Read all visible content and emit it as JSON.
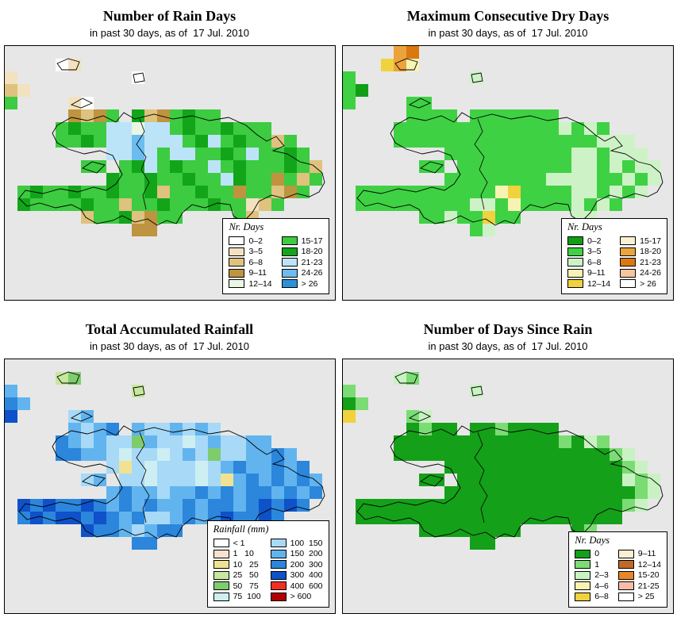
{
  "map": {
    "background": "#E7E7E7",
    "cell_size": 16,
    "cols": 26,
    "rows": 20
  },
  "panels": [
    {
      "id": "rain-days",
      "title": "Number of Rain Days",
      "subtitle": "in past 30 days, as of  17 Jul. 2010",
      "legend": {
        "title": "Nr. Days",
        "columns": [
          [
            {
              "label": "0–2",
              "color": "#FFFFFF"
            },
            {
              "label": "3–5",
              "color": "#F2E2C0"
            },
            {
              "label": "6–8",
              "color": "#DEC27E"
            },
            {
              "label": "9–11",
              "color": "#BE9440"
            },
            {
              "label": "12–14",
              "color": "#EAF6E2"
            }
          ],
          [
            {
              "label": "15-17",
              "color": "#3DCB41"
            },
            {
              "label": "18-20",
              "color": "#12A51A"
            },
            {
              "label": "21-23",
              "color": "#BCE4F9"
            },
            {
              "label": "24-26",
              "color": "#6CBCEF"
            },
            {
              "label": "> 26",
              "color": "#2E8FD8"
            }
          ]
        ]
      },
      "palette": {
        "a": "#FFFFFF",
        "b": "#F2E2C0",
        "c": "#DEC27E",
        "d": "#BE9440",
        "e": "#EAF6E2",
        "f": "#3DCB41",
        "g": "#12A51A",
        "h": "#BCE4F9",
        "i": "#6CBCEF",
        "j": "#2E8FD8"
      },
      "grid": [
        "..........................",
        "....ab....................",
        "b.........a...............",
        "cb........................",
        "f....ba...................",
        ".....dcdf.gcdfgff.........",
        "....fgffhhehhfgffgfff.....",
        "....ffgfhhihhhfghfgffcf...",
        "........hhihfhhffgfhffgf..",
        "......ff.fghfgffhfgfffgfc.",
        "........gffgffgffhgffdfcf.",
        ".fgffgffgffgcffgffdffcdf..",
        ".gffffgffcffgfffgffbcf....",
        "......cffgcdff....fc......",
        "..........dd..............",
        "..........................",
        "..........................",
        "..........................",
        "..........................",
        ".........................."
      ]
    },
    {
      "id": "dry-days",
      "title": "Maximum Consecutive Dry Days",
      "subtitle": "in past 30 days, as of  17 Jul. 2010",
      "legend": {
        "title": "Nr. Days",
        "columns": [
          [
            {
              "label": "0–2",
              "color": "#119E16"
            },
            {
              "label": "3–5",
              "color": "#3FD144"
            },
            {
              "label": "6–8",
              "color": "#CDF2C6"
            },
            {
              "label": "9–11",
              "color": "#F7F3B2"
            },
            {
              "label": "12–14",
              "color": "#F0D23E"
            }
          ],
          [
            {
              "label": "15-17",
              "color": "#FBF0D2"
            },
            {
              "label": "18-20",
              "color": "#EDA33C"
            },
            {
              "label": "21-23",
              "color": "#D9790F"
            },
            {
              "label": "24-26",
              "color": "#F6C79E"
            },
            {
              "label": "> 26",
              "color": "#FFFFFF"
            }
          ]
        ]
      },
      "palette": {
        "a": "#119E16",
        "b": "#3FD144",
        "c": "#CDF2C6",
        "d": "#F7F3B2",
        "e": "#F0D23E",
        "f": "#FBF0D2",
        "g": "#EDA33C",
        "h": "#D9790F",
        "i": "#F6C79E",
        "j": "#FFFFFF"
      },
      "grid": [
        "....gh....................",
        "...egd....................",
        "b.........c...............",
        "ba........................",
        "b....bb...................",
        ".....bbbb.bbbbbbb.........",
        "....bbbbbbbbbbbbbcbcb.....",
        "....bbbbbbbbbbbbbbbbccc...",
        "........bbbbbbbbbbccbccc..",
        "......bb.bbbbbbbbbccbcbcc.",
        "........bbbbbbbbccccbbcbc.",
        ".bbbbbbbbbbbdebbbbccbcbc..",
        ".bbbbbbbbbccbdbbbbcbcb....",
        "......bbcbbebb....cc......",
        "..........bc..............",
        "..........................",
        "..........................",
        "..........................",
        "..........................",
        ".........................."
      ]
    },
    {
      "id": "total-rainfall",
      "title": "Total Accumulated Rainfall",
      "subtitle": "in past 30 days, as of  17 Jul. 2010",
      "legend": {
        "title": "Rainfall (mm)",
        "columns": [
          [
            {
              "label": "< 1",
              "color": "#FFFFFF"
            },
            {
              "label": "1   10",
              "color": "#F7E2D0"
            },
            {
              "label": "10   25",
              "color": "#F0E292"
            },
            {
              "label": "25   50",
              "color": "#C6E89E"
            },
            {
              "label": "50   75",
              "color": "#7ECC6E"
            },
            {
              "label": "75  100",
              "color": "#CDEFF2"
            }
          ],
          [
            {
              "label": "100  150",
              "color": "#A8D9F7"
            },
            {
              "label": "150  200",
              "color": "#62B4EE"
            },
            {
              "label": "200  300",
              "color": "#2B86DC"
            },
            {
              "label": "300  400",
              "color": "#0F51C8"
            },
            {
              "label": "400  600",
              "color": "#EE3023"
            },
            {
              "label": "> 600",
              "color": "#B00000"
            }
          ]
        ]
      },
      "palette": {
        "a": "#FFFFFF",
        "b": "#F7E2D0",
        "c": "#F0E292",
        "d": "#C6E89E",
        "e": "#7ECC6E",
        "f": "#CDEFF2",
        "g": "#A8D9F7",
        "h": "#62B4EE",
        "i": "#2B86DC",
        "j": "#0F51C8",
        "k": "#EE3023",
        "l": "#B00000"
      },
      "grid": [
        "..........................",
        "....de....................",
        "h.........d...............",
        "ih........................",
        "j....gh...................",
        ".....hghi.hgghghg.........",
        "....ihghggehggfghgghh.....",
        "....iihhgfggfghgegghhih...",
        "........gcgfgggfghihhihi..",
        "......gh.ggfgggfgchihihih.",
        "........hihhghhihihiihihi.",
        ".jijiijihihihhihiihijiji..",
        ".ijijjijihigghihijiiji....",
        "......jiihghii....ij......",
        "..........ii..............",
        "..........................",
        "..........................",
        "..........................",
        "..........................",
        ".........................."
      ]
    },
    {
      "id": "days-since-rain",
      "title": "Number of Days Since Rain",
      "subtitle": "in past 30 days, as of  17 Jul. 2010",
      "legend": {
        "title": "Nr. Days",
        "columns": [
          [
            {
              "label": "0",
              "color": "#14A019"
            },
            {
              "label": "1",
              "color": "#7BDC74"
            },
            {
              "label": "2–3",
              "color": "#C9F2C2"
            },
            {
              "label": "4–6",
              "color": "#F7F3B2"
            },
            {
              "label": "6–8",
              "color": "#F0D23E"
            }
          ],
          [
            {
              "label": "9–11",
              "color": "#FBF0D2"
            },
            {
              "label": "12–14",
              "color": "#C06A28"
            },
            {
              "label": "15-20",
              "color": "#E8862A"
            },
            {
              "label": "21-25",
              "color": "#F7BCA8"
            },
            {
              "label": "> 25",
              "color": "#FFFFFF"
            }
          ]
        ]
      },
      "palette": {
        "a": "#14A019",
        "b": "#7BDC74",
        "c": "#C9F2C2",
        "d": "#F7F3B2",
        "e": "#F0D23E",
        "f": "#FBF0D2",
        "g": "#C06A28",
        "h": "#E8862A",
        "i": "#F7BCA8",
        "j": "#FFFFFF"
      },
      "grid": [
        "..........................",
        "....cb....................",
        "b.........c...............",
        "ab........................",
        "e....bc...................",
        ".....abaa.aabaaaa.........",
        "....aaaaaaaaaaaaabacb.....",
        "....aaaaaaaaaaaaaaaaabc...",
        "........aaaaaaaaaaaaaabc..",
        "......aa.aaaaaaaaaaaaacbc.",
        "........aaaaaaaaaaaaaaabc.",
        ".aaaaaaaaaaaaaaaaaaaaabc..",
        ".aaaaaaaaaaaaaaaaaaaaa....",
        "......aaaaaaaa....ab......",
        "..........aa..............",
        "..........................",
        "..........................",
        "..........................",
        "..........................",
        ".........................."
      ]
    }
  ]
}
